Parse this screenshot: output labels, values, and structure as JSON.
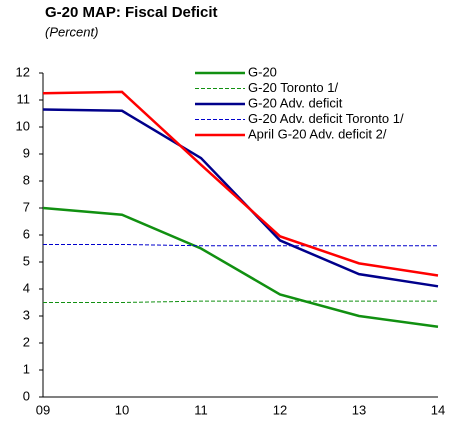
{
  "chart_data": {
    "type": "line",
    "title": "G-20 MAP: Fiscal Deficit",
    "subtitle": "(Percent)",
    "categories": [
      "09",
      "10",
      "11",
      "12",
      "13",
      "14"
    ],
    "series": [
      {
        "name": "G-20",
        "color": "#119011",
        "dashed": false,
        "values": [
          7.0,
          6.75,
          5.5,
          3.8,
          3.0,
          2.6
        ]
      },
      {
        "name": "G-20 Toronto 1/",
        "color": "#119011",
        "dashed": true,
        "values": [
          3.5,
          3.5,
          3.55,
          3.55,
          3.55,
          3.55
        ]
      },
      {
        "name": "G-20 Adv. deficit",
        "color": "#00008b",
        "dashed": false,
        "values": [
          10.65,
          10.6,
          8.85,
          5.8,
          4.55,
          4.1
        ]
      },
      {
        "name": "G-20 Adv. deficit Toronto 1/",
        "color": "#0000cc",
        "dashed": true,
        "values": [
          5.65,
          5.65,
          5.6,
          5.6,
          5.6,
          5.6
        ]
      },
      {
        "name": "April G-20 Adv. deficit 2/",
        "color": "#ff0000",
        "dashed": false,
        "values": [
          11.25,
          11.3,
          8.6,
          5.95,
          4.95,
          4.5
        ]
      }
    ],
    "ylim": [
      0,
      12
    ],
    "yticks": [
      0,
      1,
      2,
      3,
      4,
      5,
      6,
      7,
      8,
      9,
      10,
      11,
      12
    ],
    "grid": false,
    "legend": "upper right"
  }
}
